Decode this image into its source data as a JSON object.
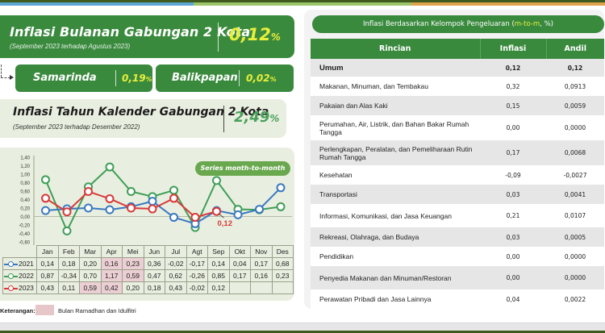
{
  "colors": {
    "primary_green": "#3a8a3e",
    "highlight_yellow": "#e8ef3a",
    "light_card": "#e9efe0",
    "series_2021": "#3a78c2",
    "series_2022": "#3f9e58",
    "series_2023": "#d83a3a",
    "ramadhan_highlight": "#ebcfd4"
  },
  "monthly": {
    "title": "Inflasi Bulanan Gabungan 2 Kota",
    "subtitle": "(September 2023 terhadap Agustus 2023)",
    "value": "0,12",
    "unit": "%"
  },
  "cities": [
    {
      "name": "Samarinda",
      "value": "0,19",
      "unit": "%"
    },
    {
      "name": "Balikpapan",
      "value": "0,02",
      "unit": "%"
    }
  ],
  "yearly": {
    "title": "Inflasi Tahun Kalender Gabungan 2 Kota",
    "subtitle": "(September 2023 terhadap Desember 2022)",
    "value": "2,49",
    "unit": "%"
  },
  "chart_badge": "Series month-to-month",
  "chart_annotation": "0,12",
  "chart_data": {
    "type": "line",
    "title": "Series month-to-month",
    "xlabel": "",
    "ylabel": "",
    "ylim": [
      -0.6,
      1.4
    ],
    "yticks": [
      "1,40",
      "1,20",
      "1,00",
      "0,80",
      "0,60",
      "0,40",
      "0,20",
      "0,00",
      "-0,20",
      "-0,40",
      "-0,60"
    ],
    "grid": false,
    "legend_position": "table-left",
    "categories": [
      "Jan",
      "Feb",
      "Mar",
      "Apr",
      "Mei",
      "Jun",
      "Jul",
      "Agt",
      "Sep",
      "Okt",
      "Nov",
      "Des"
    ],
    "series": [
      {
        "name": "2021",
        "values": [
          0.14,
          0.18,
          0.2,
          0.16,
          0.23,
          0.36,
          -0.02,
          -0.17,
          0.14,
          0.04,
          0.17,
          0.68
        ]
      },
      {
        "name": "2022",
        "values": [
          0.87,
          -0.34,
          0.7,
          1.17,
          0.59,
          0.47,
          0.62,
          -0.26,
          0.85,
          0.17,
          0.16,
          0.23
        ]
      },
      {
        "name": "2023",
        "values": [
          0.43,
          0.11,
          0.59,
          0.42,
          0.2,
          0.18,
          0.43,
          -0.02,
          0.12,
          null,
          null,
          null
        ]
      }
    ],
    "annotations": [
      {
        "series": "2023",
        "category": "Sep",
        "text": "0,12"
      }
    ]
  },
  "chart_table": {
    "months": [
      "Jan",
      "Feb",
      "Mar",
      "Apr",
      "Mei",
      "Jun",
      "Jul",
      "Agt",
      "Sep",
      "Okt",
      "Nov",
      "Des"
    ],
    "rows": [
      {
        "year": "2021",
        "values": [
          "0,14",
          "0,18",
          "0,20",
          "0,16",
          "0,23",
          "0,36",
          "-0,02",
          "-0,17",
          "0,14",
          "0,04",
          "0,17",
          "0,68"
        ],
        "highlight": [
          3,
          4
        ]
      },
      {
        "year": "2022",
        "values": [
          "0,87",
          "-0,34",
          "0,70",
          "1,17",
          "0,59",
          "0,47",
          "0,62",
          "-0,26",
          "0,85",
          "0,17",
          "0,16",
          "0,23"
        ],
        "highlight": [
          3,
          4
        ]
      },
      {
        "year": "2023",
        "values": [
          "0,43",
          "0,11",
          "0,59",
          "0,42",
          "0,20",
          "0,18",
          "0,43",
          "-0,02",
          "0,12",
          "",
          "",
          ""
        ],
        "highlight": [
          2,
          3
        ]
      }
    ]
  },
  "legend_note": {
    "label": "Keterangan:",
    "text": "Bulan Ramadhan dan Idulfitri"
  },
  "group_panel": {
    "title_prefix": "Inflasi Berdasarkan Kelompok Pengeluaran (",
    "title_highlight": "m-to-m",
    "title_suffix": ", %)",
    "headers": [
      "Rincian",
      "Inflasi",
      "Andil"
    ],
    "rows": [
      {
        "rincian": "Umum",
        "inflasi": "0,12",
        "andil": "0,12"
      },
      {
        "rincian": "Makanan, Minuman, dan Tembakau",
        "inflasi": "0,32",
        "andil": "0,0913"
      },
      {
        "rincian": "Pakaian dan Alas Kaki",
        "inflasi": "0,15",
        "andil": "0,0059"
      },
      {
        "rincian": "Perumahan, Air, Listrik, dan Bahan Bakar Rumah Tangga",
        "inflasi": "0,00",
        "andil": "0,0000"
      },
      {
        "rincian": "Perlengkapan, Peralatan, dan Pemeliharaan Rutin Rumah Tangga",
        "inflasi": "0,17",
        "andil": "0,0068"
      },
      {
        "rincian": "Kesehatan",
        "inflasi": "-0,09",
        "andil": "-0,0027"
      },
      {
        "rincian": "Transportasi",
        "inflasi": "0,03",
        "andil": "0,0041"
      },
      {
        "rincian": "Informasi, Komunikasi, dan Jasa Keuangan",
        "inflasi": "0,21",
        "andil": "0,0107"
      },
      {
        "rincian": "Rekreasi, Olahraga, dan Budaya",
        "inflasi": "0,03",
        "andil": "0,0005"
      },
      {
        "rincian": "Pendidikan",
        "inflasi": "0,00",
        "andil": "0,0000"
      },
      {
        "rincian": "Penyedia Makanan dan Minuman/Restoran",
        "inflasi": "0,00",
        "andil": "0,0000"
      },
      {
        "rincian": "Perawatan Pribadi dan Jasa Lainnya",
        "inflasi": "0,04",
        "andil": "0,0022"
      }
    ]
  }
}
